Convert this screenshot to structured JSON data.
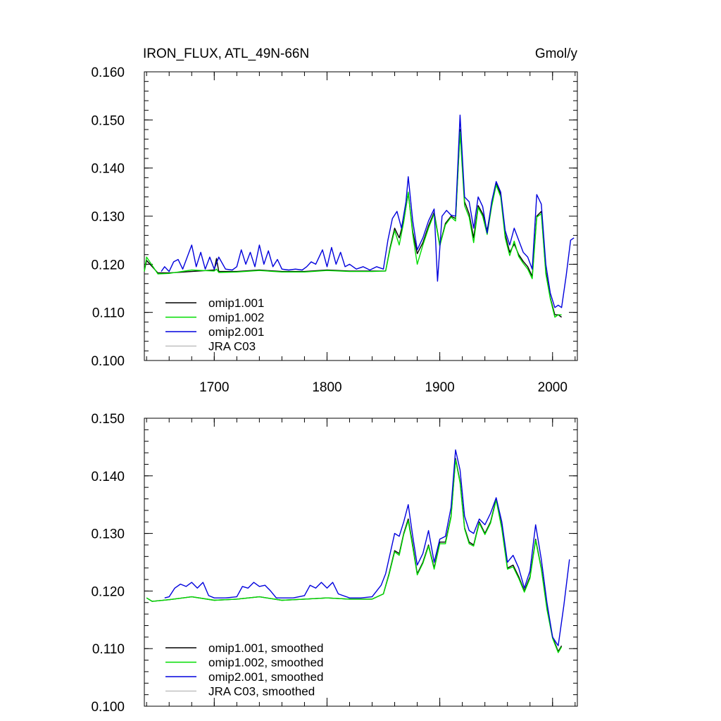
{
  "figure": {
    "title_left": "IRON_FLUX, ATL_49N-66N",
    "title_right": "Gmol/y"
  },
  "chart_data": [
    {
      "type": "line",
      "title": "IRON_FLUX, ATL_49N-66N",
      "units": "Gmol/y",
      "xlim": [
        1638,
        2022
      ],
      "ylim": [
        0.1,
        0.16
      ],
      "x_ticks": [
        1700,
        1800,
        1900,
        2000
      ],
      "x_tick_labels": [
        "1700",
        "1800",
        "1900",
        "2000"
      ],
      "y_ticks": [
        0.1,
        0.11,
        0.12,
        0.13,
        0.14,
        0.15,
        0.16
      ],
      "y_tick_labels": [
        "0.100",
        "0.110",
        "0.120",
        "0.130",
        "0.140",
        "0.150",
        "0.160"
      ],
      "legend_position": "bottom-left",
      "series": [
        {
          "name": "omip1.001",
          "color": "#000000",
          "x": [
            1638,
            1640,
            1650,
            1660,
            1680,
            1700,
            1702,
            1704,
            1720,
            1740,
            1760,
            1780,
            1800,
            1820,
            1840,
            1852,
            1856,
            1860,
            1864,
            1868,
            1872,
            1876,
            1880,
            1885,
            1890,
            1895,
            1900,
            1905,
            1910,
            1914,
            1918,
            1922,
            1926,
            1930,
            1934,
            1938,
            1942,
            1946,
            1950,
            1954,
            1958,
            1962,
            1966,
            1970,
            1974,
            1978,
            1982,
            1986,
            1990,
            1994,
            1998,
            2002,
            2005,
            2008
          ],
          "y": [
            0.1186,
            0.1208,
            0.1182,
            0.1182,
            0.1185,
            0.1188,
            0.1212,
            0.1185,
            0.1185,
            0.1188,
            0.1185,
            0.1185,
            0.1188,
            0.1186,
            0.1186,
            0.1186,
            0.1235,
            0.1275,
            0.1255,
            0.129,
            0.1348,
            0.1268,
            0.1222,
            0.1245,
            0.128,
            0.1308,
            0.124,
            0.1285,
            0.13,
            0.1295,
            0.148,
            0.133,
            0.1305,
            0.1255,
            0.1322,
            0.1305,
            0.127,
            0.1325,
            0.1368,
            0.1345,
            0.1262,
            0.1225,
            0.1242,
            0.122,
            0.1206,
            0.1195,
            0.1175,
            0.13,
            0.131,
            0.1185,
            0.113,
            0.1095,
            0.1095,
            0.109
          ]
        },
        {
          "name": "omip1.002",
          "color": "#00dd00",
          "x": [
            1638,
            1640,
            1650,
            1660,
            1680,
            1700,
            1702,
            1704,
            1720,
            1740,
            1760,
            1780,
            1800,
            1820,
            1840,
            1852,
            1856,
            1860,
            1864,
            1868,
            1872,
            1876,
            1880,
            1885,
            1890,
            1895,
            1900,
            1905,
            1910,
            1914,
            1918,
            1922,
            1926,
            1930,
            1934,
            1938,
            1942,
            1946,
            1950,
            1954,
            1958,
            1962,
            1966,
            1970,
            1974,
            1978,
            1982,
            1986,
            1990,
            1994,
            1998,
            2002,
            2005,
            2008
          ],
          "y": [
            0.1185,
            0.1215,
            0.118,
            0.1181,
            0.1188,
            0.1186,
            0.119,
            0.1183,
            0.1184,
            0.1187,
            0.1184,
            0.1184,
            0.1187,
            0.1185,
            0.1185,
            0.1186,
            0.1232,
            0.127,
            0.124,
            0.1288,
            0.135,
            0.1262,
            0.12,
            0.124,
            0.1275,
            0.1305,
            0.1238,
            0.1282,
            0.1298,
            0.129,
            0.1475,
            0.1322,
            0.1298,
            0.1245,
            0.1318,
            0.13,
            0.1262,
            0.132,
            0.1365,
            0.134,
            0.1255,
            0.1218,
            0.1248,
            0.1216,
            0.1202,
            0.119,
            0.117,
            0.1298,
            0.1305,
            0.118,
            0.1128,
            0.109,
            0.1095,
            0.1095
          ]
        },
        {
          "name": "omip2.001",
          "color": "#0000dd",
          "x": [
            1653,
            1656,
            1660,
            1664,
            1668,
            1672,
            1676,
            1680,
            1684,
            1688,
            1692,
            1696,
            1700,
            1704,
            1710,
            1716,
            1720,
            1724,
            1728,
            1732,
            1736,
            1740,
            1744,
            1748,
            1752,
            1756,
            1760,
            1766,
            1772,
            1778,
            1782,
            1786,
            1790,
            1796,
            1800,
            1804,
            1808,
            1812,
            1816,
            1820,
            1826,
            1832,
            1838,
            1844,
            1850,
            1854,
            1858,
            1862,
            1866,
            1870,
            1872,
            1876,
            1880,
            1885,
            1890,
            1895,
            1898,
            1902,
            1906,
            1910,
            1914,
            1918,
            1922,
            1926,
            1930,
            1934,
            1938,
            1942,
            1946,
            1950,
            1954,
            1958,
            1962,
            1966,
            1970,
            1974,
            1978,
            1982,
            1986,
            1990,
            1994,
            1998,
            2002,
            2005,
            2008,
            2012,
            2016,
            2019
          ],
          "y": [
            0.1185,
            0.1195,
            0.1185,
            0.1205,
            0.121,
            0.119,
            0.1215,
            0.124,
            0.1195,
            0.1225,
            0.119,
            0.1215,
            0.119,
            0.1215,
            0.119,
            0.1188,
            0.1195,
            0.123,
            0.12,
            0.1225,
            0.1195,
            0.124,
            0.12,
            0.1228,
            0.1195,
            0.121,
            0.119,
            0.1188,
            0.119,
            0.1188,
            0.1195,
            0.1205,
            0.12,
            0.123,
            0.1195,
            0.1235,
            0.12,
            0.1225,
            0.1195,
            0.12,
            0.119,
            0.1195,
            0.1188,
            0.1195,
            0.119,
            0.125,
            0.1295,
            0.131,
            0.1275,
            0.133,
            0.1382,
            0.129,
            0.123,
            0.1255,
            0.129,
            0.1315,
            0.1165,
            0.13,
            0.1312,
            0.1302,
            0.13,
            0.151,
            0.134,
            0.133,
            0.1275,
            0.134,
            0.132,
            0.1265,
            0.133,
            0.1372,
            0.135,
            0.127,
            0.124,
            0.1275,
            0.125,
            0.1225,
            0.1215,
            0.119,
            0.1345,
            0.1325,
            0.12,
            0.114,
            0.111,
            0.1115,
            0.111,
            0.1175,
            0.125,
            0.1255
          ]
        },
        {
          "name": "JRA C03",
          "color": "#c0c0c0",
          "x": [],
          "y": []
        }
      ]
    },
    {
      "type": "line",
      "xlim": [
        1638,
        2022
      ],
      "ylim": [
        0.1,
        0.15
      ],
      "x_ticks": [
        1700,
        1800,
        1900,
        2000
      ],
      "y_ticks": [
        0.1,
        0.11,
        0.12,
        0.13,
        0.14,
        0.15
      ],
      "y_tick_labels": [
        "0.100",
        "0.110",
        "0.120",
        "0.130",
        "0.140",
        "0.150"
      ],
      "legend_position": "bottom-left",
      "series": [
        {
          "name": "omip1.001, smoothed",
          "color": "#000000",
          "x": [
            1640,
            1645,
            1660,
            1680,
            1700,
            1720,
            1740,
            1760,
            1780,
            1800,
            1820,
            1840,
            1850,
            1855,
            1860,
            1864,
            1868,
            1872,
            1876,
            1880,
            1885,
            1890,
            1895,
            1900,
            1905,
            1910,
            1914,
            1918,
            1922,
            1926,
            1930,
            1935,
            1940,
            1945,
            1950,
            1955,
            1960,
            1965,
            1970,
            1975,
            1980,
            1985,
            1990,
            1995,
            2000,
            2005,
            2008
          ],
          "y": [
            0.1188,
            0.1182,
            0.1185,
            0.119,
            0.1184,
            0.1186,
            0.119,
            0.1184,
            0.1186,
            0.1188,
            0.1186,
            0.1186,
            0.1195,
            0.123,
            0.127,
            0.1265,
            0.13,
            0.1325,
            0.128,
            0.123,
            0.125,
            0.128,
            0.124,
            0.1285,
            0.1285,
            0.133,
            0.143,
            0.139,
            0.131,
            0.1285,
            0.128,
            0.132,
            0.13,
            0.132,
            0.136,
            0.131,
            0.124,
            0.1245,
            0.1225,
            0.12,
            0.1225,
            0.129,
            0.124,
            0.117,
            0.112,
            0.1095,
            0.1105
          ]
        },
        {
          "name": "omip1.002, smoothed",
          "color": "#00dd00",
          "x": [
            1640,
            1645,
            1660,
            1680,
            1700,
            1720,
            1740,
            1760,
            1780,
            1800,
            1820,
            1840,
            1850,
            1855,
            1860,
            1864,
            1868,
            1872,
            1876,
            1880,
            1885,
            1890,
            1895,
            1900,
            1905,
            1910,
            1914,
            1918,
            1922,
            1926,
            1930,
            1935,
            1940,
            1945,
            1950,
            1955,
            1960,
            1965,
            1970,
            1975,
            1980,
            1985,
            1990,
            1995,
            2000,
            2005,
            2008
          ],
          "y": [
            0.1188,
            0.1182,
            0.1185,
            0.119,
            0.1184,
            0.1186,
            0.119,
            0.1184,
            0.1186,
            0.1188,
            0.1186,
            0.1186,
            0.1195,
            0.1228,
            0.1268,
            0.1262,
            0.1298,
            0.1322,
            0.1276,
            0.1228,
            0.1248,
            0.1278,
            0.1238,
            0.1282,
            0.1282,
            0.1328,
            0.1428,
            0.1388,
            0.1308,
            0.1282,
            0.1278,
            0.1318,
            0.1298,
            0.1318,
            0.1358,
            0.1308,
            0.1238,
            0.1242,
            0.1222,
            0.1198,
            0.1222,
            0.1288,
            0.1238,
            0.1168,
            0.1118,
            0.1093,
            0.1103
          ]
        },
        {
          "name": "omip2.001, smoothed",
          "color": "#0000dd",
          "x": [
            1656,
            1660,
            1665,
            1670,
            1675,
            1680,
            1685,
            1690,
            1695,
            1700,
            1710,
            1720,
            1725,
            1730,
            1735,
            1740,
            1745,
            1750,
            1755,
            1760,
            1770,
            1780,
            1785,
            1790,
            1795,
            1800,
            1805,
            1810,
            1820,
            1830,
            1840,
            1848,
            1852,
            1856,
            1860,
            1864,
            1868,
            1872,
            1876,
            1880,
            1885,
            1890,
            1895,
            1900,
            1905,
            1910,
            1914,
            1918,
            1922,
            1926,
            1930,
            1935,
            1940,
            1945,
            1950,
            1955,
            1960,
            1965,
            1970,
            1975,
            1980,
            1985,
            1990,
            1995,
            2000,
            2005,
            2010,
            2015
          ],
          "y": [
            0.1188,
            0.119,
            0.1205,
            0.1212,
            0.1208,
            0.1215,
            0.1205,
            0.1215,
            0.1192,
            0.1188,
            0.1188,
            0.119,
            0.1208,
            0.1205,
            0.1215,
            0.1208,
            0.121,
            0.12,
            0.1188,
            0.1188,
            0.1188,
            0.1192,
            0.121,
            0.1205,
            0.1215,
            0.1205,
            0.1215,
            0.1195,
            0.1188,
            0.1188,
            0.119,
            0.121,
            0.123,
            0.1265,
            0.13,
            0.1295,
            0.132,
            0.135,
            0.1295,
            0.1245,
            0.1265,
            0.1305,
            0.125,
            0.129,
            0.1295,
            0.1345,
            0.1445,
            0.141,
            0.133,
            0.1305,
            0.13,
            0.1325,
            0.1315,
            0.1335,
            0.1362,
            0.132,
            0.125,
            0.1262,
            0.124,
            0.1205,
            0.1235,
            0.1315,
            0.1255,
            0.118,
            0.112,
            0.1105,
            0.1175,
            0.1255
          ]
        },
        {
          "name": "JRA C03, smoothed",
          "color": "#c0c0c0",
          "x": [],
          "y": []
        }
      ]
    }
  ]
}
